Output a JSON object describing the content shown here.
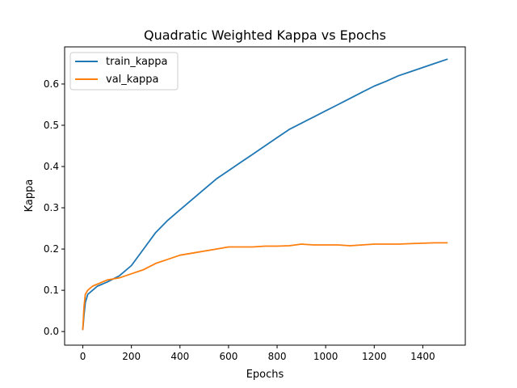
{
  "chart_data": {
    "type": "line",
    "title": "Quadratic Weighted Kappa vs Epochs",
    "xlabel": "Epochs",
    "ylabel": "Kappa",
    "xlim": [
      -75,
      1575
    ],
    "ylim": [
      -0.033,
      0.69
    ],
    "xticks": [
      0,
      200,
      400,
      600,
      800,
      1000,
      1200,
      1400
    ],
    "yticks": [
      0.0,
      0.1,
      0.2,
      0.3,
      0.4,
      0.5,
      0.6
    ],
    "ytick_labels": [
      "0.0",
      "0.1",
      "0.2",
      "0.3",
      "0.4",
      "0.5",
      "0.6"
    ],
    "grid": false,
    "legend_position": "top-left",
    "series": [
      {
        "name": "train_kappa",
        "color": "#1f77b4",
        "x": [
          0,
          5,
          10,
          20,
          40,
          60,
          80,
          100,
          150,
          200,
          250,
          300,
          350,
          400,
          450,
          500,
          550,
          600,
          650,
          700,
          750,
          800,
          850,
          900,
          950,
          1000,
          1050,
          1100,
          1150,
          1200,
          1250,
          1300,
          1350,
          1400,
          1450,
          1500
        ],
        "y": [
          0.005,
          0.04,
          0.07,
          0.09,
          0.1,
          0.11,
          0.115,
          0.12,
          0.135,
          0.16,
          0.2,
          0.24,
          0.27,
          0.295,
          0.32,
          0.345,
          0.37,
          0.39,
          0.41,
          0.43,
          0.45,
          0.47,
          0.49,
          0.505,
          0.52,
          0.535,
          0.55,
          0.565,
          0.58,
          0.595,
          0.607,
          0.62,
          0.63,
          0.64,
          0.65,
          0.66
        ]
      },
      {
        "name": "val_kappa",
        "color": "#ff7f0e",
        "x": [
          0,
          5,
          10,
          20,
          30,
          40,
          60,
          80,
          100,
          150,
          200,
          250,
          300,
          350,
          400,
          450,
          500,
          550,
          600,
          650,
          700,
          750,
          800,
          850,
          900,
          950,
          1000,
          1050,
          1100,
          1150,
          1200,
          1250,
          1300,
          1350,
          1400,
          1450,
          1500
        ],
        "y": [
          0.005,
          0.06,
          0.09,
          0.1,
          0.105,
          0.11,
          0.115,
          0.12,
          0.125,
          0.13,
          0.14,
          0.15,
          0.165,
          0.175,
          0.185,
          0.19,
          0.195,
          0.2,
          0.205,
          0.205,
          0.205,
          0.207,
          0.207,
          0.208,
          0.212,
          0.21,
          0.21,
          0.21,
          0.208,
          0.21,
          0.212,
          0.212,
          0.212,
          0.213,
          0.214,
          0.215,
          0.215
        ]
      }
    ]
  }
}
